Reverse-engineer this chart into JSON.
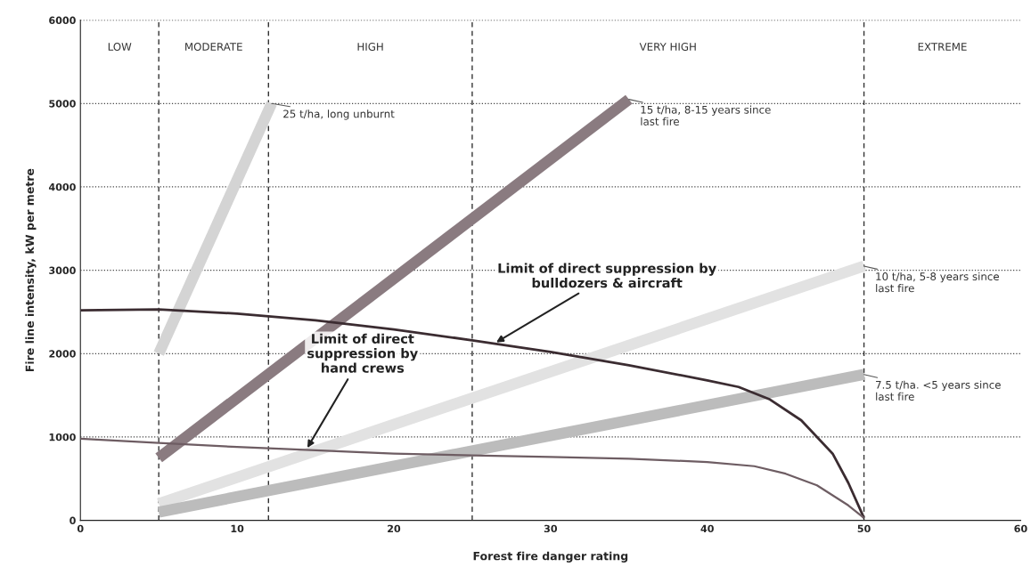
{
  "chart_data": {
    "type": "line",
    "xlabel": "Forest fire danger rating",
    "ylabel": "Fire line intensity, kW per metre",
    "xlim": [
      0,
      60
    ],
    "ylim": [
      0,
      6000
    ],
    "xticks": [
      0,
      10,
      20,
      30,
      40,
      50,
      60
    ],
    "yticks": [
      0,
      1000,
      2000,
      3000,
      4000,
      5000,
      6000
    ],
    "grid": "y",
    "legend": false,
    "line_style": "solid",
    "marker": "none",
    "series": [
      {
        "name": "25 t/ha, long unburnt",
        "color": "#d4d4d4",
        "x": [
          5,
          12.2
        ],
        "values": [
          2000,
          5000
        ]
      },
      {
        "name": "15 t/ha, 8-15 years since last fire",
        "color": "#8a7b80",
        "x": [
          5,
          35
        ],
        "values": [
          750,
          5050
        ]
      },
      {
        "name": "10 t/ha, 5-8 years since last fire",
        "color": "#e2e2e2",
        "x": [
          5,
          50
        ],
        "values": [
          200,
          3050
        ]
      },
      {
        "name": "7.5 t/ha. <5 years since last fire",
        "color": "#bcbcbc",
        "x": [
          5,
          50
        ],
        "values": [
          100,
          1750
        ]
      },
      {
        "name": "Limit of direct suppression by bulldozers & aircraft",
        "color": "#3b2c31",
        "x": [
          0,
          5,
          10,
          15,
          20,
          25,
          30,
          35,
          40,
          42,
          44,
          46,
          48,
          49,
          50
        ],
        "values": [
          2520,
          2530,
          2480,
          2400,
          2290,
          2160,
          2020,
          1860,
          1680,
          1600,
          1450,
          1200,
          800,
          450,
          30
        ]
      },
      {
        "name": "Limit of direct suppression by hand crews",
        "color": "#6e5d63",
        "x": [
          0,
          5,
          10,
          15,
          20,
          25,
          30,
          35,
          40,
          43,
          45,
          47,
          49,
          50
        ],
        "values": [
          980,
          930,
          880,
          840,
          800,
          780,
          760,
          740,
          700,
          650,
          560,
          420,
          180,
          30
        ]
      }
    ],
    "ref_lines": [
      {
        "axis": "x",
        "value": 5,
        "line_style": "dashed"
      },
      {
        "axis": "x",
        "value": 12,
        "line_style": "dashed"
      },
      {
        "axis": "x",
        "value": 25,
        "line_style": "dashed"
      },
      {
        "axis": "x",
        "value": 50,
        "line_style": "dashed"
      }
    ],
    "annotations": [
      "LOW",
      "MODERATE",
      "HIGH",
      "VERY HIGH",
      "EXTREME"
    ]
  }
}
